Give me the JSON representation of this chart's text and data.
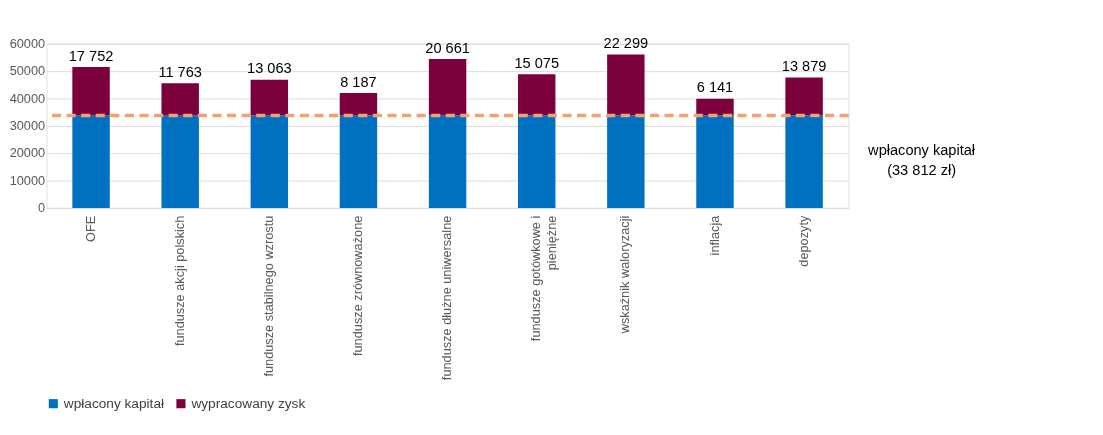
{
  "chart_data": {
    "type": "bar",
    "stacked": true,
    "categories": [
      "OFE",
      "fundusze akcji polskich",
      "fundusze stabilnego wzrostu",
      "fundusze zrównoważone",
      "fundusze dłużne uniwersalne",
      "fundusze gotówkowe i pieniężne",
      "wskaźnik waloryzacji",
      "inflacja",
      "depozyty"
    ],
    "series": [
      {
        "name": "wpłacony kapitał",
        "color": "#0070c0",
        "values": [
          33812,
          33812,
          33812,
          33812,
          33812,
          33812,
          33812,
          33812,
          33812
        ]
      },
      {
        "name": "wypracowany zysk",
        "color": "#7b003c",
        "values": [
          17752,
          11763,
          13063,
          8187,
          20661,
          15075,
          22299,
          6141,
          13879
        ],
        "value_labels": [
          "17 752",
          "11 763",
          "13 063",
          "8 187",
          "20 661",
          "15 075",
          "22 299",
          "6 141",
          "13 879"
        ]
      }
    ],
    "ylim": [
      0,
      60000
    ],
    "yticks": [
      0,
      10000,
      20000,
      30000,
      40000,
      50000,
      60000
    ],
    "ref_lines": [
      {
        "axis": "y",
        "value": 33812,
        "label": "wpłacony kapitał (33 812 zł)",
        "color": "#f4a070",
        "line_style": "dashed"
      }
    ],
    "grid": "y",
    "legend": "bottom"
  }
}
